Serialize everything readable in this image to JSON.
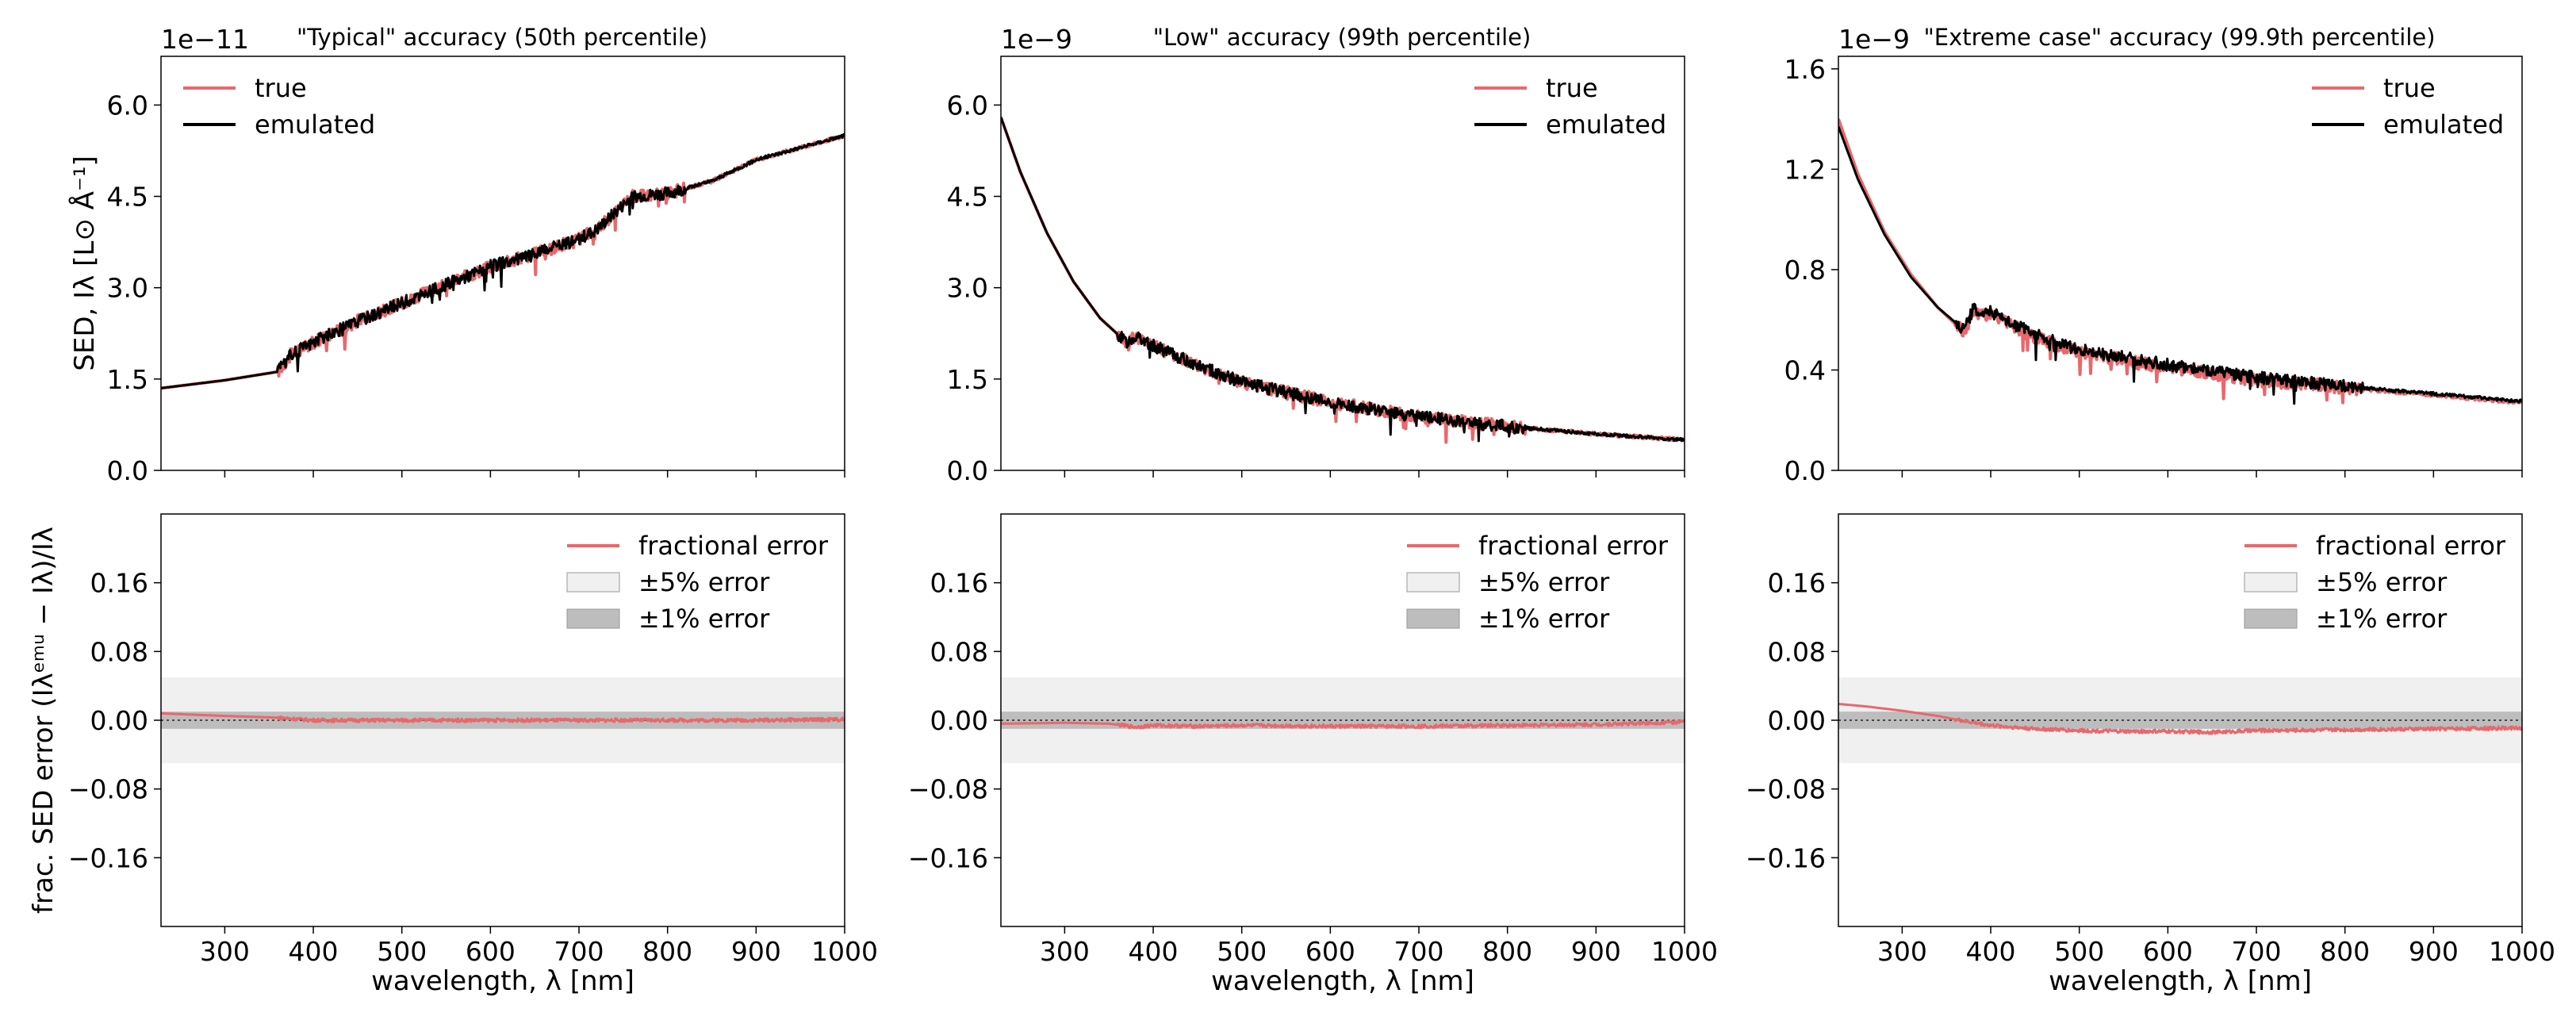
{
  "chart_data": [
    {
      "type": "line",
      "panel": "top-left",
      "title": "\"Typical\" accuracy (50th percentile)",
      "offset_text": "1e−11",
      "xlabel": "",
      "ylabel": "SED, Iλ [L⊙ Å⁻¹]",
      "xlim": [
        228,
        1000
      ],
      "ylim": [
        0.0,
        6.8
      ],
      "yticks": [
        0.0,
        1.5,
        3.0,
        4.5,
        6.0
      ],
      "ytick_labels": [
        "0.0",
        "1.5",
        "3.0",
        "4.5",
        "6.0"
      ],
      "xticks": [
        300,
        400,
        500,
        600,
        700,
        800,
        900,
        1000
      ],
      "legend": "top-left",
      "series": [
        {
          "name": "true",
          "color": "#e8686c",
          "x": [
            228,
            300,
            360,
            375,
            400,
            450,
            500,
            550,
            600,
            650,
            700,
            720,
            760,
            800,
            850,
            900,
            950,
            1000
          ],
          "y": [
            1.35,
            1.48,
            1.62,
            1.9,
            2.1,
            2.45,
            2.75,
            3.05,
            3.35,
            3.55,
            3.8,
            3.95,
            4.5,
            4.55,
            4.75,
            5.1,
            5.3,
            5.5
          ]
        },
        {
          "name": "emulated",
          "color": "#000000",
          "x": [
            228,
            300,
            360,
            375,
            400,
            450,
            500,
            550,
            600,
            650,
            700,
            720,
            760,
            800,
            850,
            900,
            950,
            1000
          ],
          "y": [
            1.35,
            1.48,
            1.62,
            1.9,
            2.1,
            2.45,
            2.75,
            3.05,
            3.35,
            3.55,
            3.8,
            3.95,
            4.5,
            4.55,
            4.75,
            5.1,
            5.3,
            5.5
          ]
        }
      ]
    },
    {
      "type": "line",
      "panel": "top-middle",
      "title": "\"Low\" accuracy (99th percentile)",
      "offset_text": "1e−9",
      "xlabel": "",
      "ylabel": "",
      "xlim": [
        228,
        1000
      ],
      "ylim": [
        0.0,
        6.8
      ],
      "yticks": [
        0.0,
        1.5,
        3.0,
        4.5,
        6.0
      ],
      "ytick_labels": [
        "0.0",
        "1.5",
        "3.0",
        "4.5",
        "6.0"
      ],
      "xticks": [
        300,
        400,
        500,
        600,
        700,
        800,
        900,
        1000
      ],
      "legend": "top-right",
      "series": [
        {
          "name": "true",
          "color": "#e8686c",
          "x": [
            228,
            250,
            280,
            310,
            340,
            370,
            380,
            400,
            450,
            500,
            550,
            600,
            700,
            800,
            900,
            1000
          ],
          "y": [
            5.8,
            4.9,
            3.9,
            3.1,
            2.5,
            2.1,
            2.2,
            2.05,
            1.72,
            1.45,
            1.28,
            1.12,
            0.88,
            0.72,
            0.6,
            0.5
          ]
        },
        {
          "name": "emulated",
          "color": "#000000",
          "x": [
            228,
            250,
            280,
            310,
            340,
            370,
            380,
            400,
            450,
            500,
            550,
            600,
            700,
            800,
            900,
            1000
          ],
          "y": [
            5.8,
            4.9,
            3.9,
            3.1,
            2.5,
            2.1,
            2.2,
            2.05,
            1.72,
            1.45,
            1.28,
            1.12,
            0.88,
            0.72,
            0.6,
            0.5
          ]
        }
      ]
    },
    {
      "type": "line",
      "panel": "top-right",
      "title": "\"Extreme case\" accuracy (99.9th percentile)",
      "offset_text": "1e−9",
      "xlabel": "",
      "ylabel": "",
      "xlim": [
        228,
        1000
      ],
      "ylim": [
        0.0,
        1.65
      ],
      "yticks": [
        0.0,
        0.4,
        0.8,
        1.2,
        1.6
      ],
      "ytick_labels": [
        "0.0",
        "0.4",
        "0.8",
        "1.2",
        "1.6"
      ],
      "xticks": [
        300,
        400,
        500,
        600,
        700,
        800,
        900,
        1000
      ],
      "legend": "top-right",
      "series": [
        {
          "name": "true",
          "color": "#e8686c",
          "x": [
            228,
            250,
            280,
            310,
            340,
            370,
            380,
            400,
            450,
            500,
            550,
            600,
            700,
            800,
            900,
            1000
          ],
          "y": [
            1.4,
            1.18,
            0.95,
            0.78,
            0.65,
            0.55,
            0.63,
            0.62,
            0.53,
            0.47,
            0.44,
            0.41,
            0.36,
            0.33,
            0.3,
            0.27
          ]
        },
        {
          "name": "emulated",
          "color": "#000000",
          "x": [
            228,
            250,
            280,
            310,
            340,
            370,
            380,
            400,
            450,
            500,
            550,
            600,
            700,
            800,
            900,
            1000
          ],
          "y": [
            1.37,
            1.16,
            0.94,
            0.77,
            0.65,
            0.56,
            0.64,
            0.63,
            0.54,
            0.48,
            0.45,
            0.42,
            0.37,
            0.335,
            0.305,
            0.275
          ]
        }
      ]
    },
    {
      "type": "line",
      "panel": "bottom-left",
      "title": "",
      "xlabel": "wavelength, λ [nm]",
      "ylabel": "frac. SED error (Iλᵉᵐᵘ − Iλ)/Iλ",
      "xlim": [
        228,
        1000
      ],
      "ylim": [
        -0.24,
        0.24
      ],
      "yticks": [
        -0.16,
        -0.08,
        0.0,
        0.08,
        0.16
      ],
      "ytick_labels": [
        "−0.16",
        "−0.08",
        "0.00",
        "0.08",
        "0.16"
      ],
      "xticks": [
        300,
        400,
        500,
        600,
        700,
        800,
        900,
        1000
      ],
      "xtick_labels": [
        "300",
        "400",
        "500",
        "600",
        "700",
        "800",
        "900",
        "1000"
      ],
      "legend": "top-right",
      "bands": [
        {
          "name": "±5% error",
          "range": [
            -0.05,
            0.05
          ],
          "color": "#f0f0f0"
        },
        {
          "name": "±1% error",
          "range": [
            -0.01,
            0.01
          ],
          "color": "#bdbdbd"
        }
      ],
      "series": [
        {
          "name": "fractional error",
          "color": "#e8686c",
          "x": [
            228,
            300,
            360,
            400,
            500,
            600,
            700,
            800,
            900,
            1000
          ],
          "y": [
            0.008,
            0.005,
            0.003,
            0.0,
            0.0,
            0.0,
            0.0,
            0.0,
            0.0,
            0.001
          ]
        }
      ]
    },
    {
      "type": "line",
      "panel": "bottom-middle",
      "title": "",
      "xlabel": "wavelength, λ [nm]",
      "ylabel": "",
      "xlim": [
        228,
        1000
      ],
      "ylim": [
        -0.24,
        0.24
      ],
      "yticks": [
        -0.16,
        -0.08,
        0.0,
        0.08,
        0.16
      ],
      "ytick_labels": [
        "−0.16",
        "−0.08",
        "0.00",
        "0.08",
        "0.16"
      ],
      "xticks": [
        300,
        400,
        500,
        600,
        700,
        800,
        900,
        1000
      ],
      "xtick_labels": [
        "300",
        "400",
        "500",
        "600",
        "700",
        "800",
        "900",
        "1000"
      ],
      "legend": "top-right",
      "bands": [
        {
          "name": "±5% error",
          "range": [
            -0.05,
            0.05
          ],
          "color": "#f0f0f0"
        },
        {
          "name": "±1% error",
          "range": [
            -0.01,
            0.01
          ],
          "color": "#bdbdbd"
        }
      ],
      "series": [
        {
          "name": "fractional error",
          "color": "#e8686c",
          "x": [
            228,
            300,
            350,
            380,
            400,
            450,
            500,
            600,
            700,
            800,
            900,
            1000
          ],
          "y": [
            -0.004,
            -0.003,
            -0.004,
            -0.008,
            -0.006,
            -0.007,
            -0.006,
            -0.007,
            -0.007,
            -0.006,
            -0.005,
            -0.002
          ]
        }
      ]
    },
    {
      "type": "line",
      "panel": "bottom-right",
      "title": "",
      "xlabel": "wavelength, λ [nm]",
      "ylabel": "",
      "xlim": [
        228,
        1000
      ],
      "ylim": [
        -0.24,
        0.24
      ],
      "yticks": [
        -0.16,
        -0.08,
        0.0,
        0.08,
        0.16
      ],
      "ytick_labels": [
        "−0.16",
        "−0.08",
        "0.00",
        "0.08",
        "0.16"
      ],
      "xticks": [
        300,
        400,
        500,
        600,
        700,
        800,
        900,
        1000
      ],
      "xtick_labels": [
        "300",
        "400",
        "500",
        "600",
        "700",
        "800",
        "900",
        "1000"
      ],
      "legend": "top-right",
      "bands": [
        {
          "name": "±5% error",
          "range": [
            -0.05,
            0.05
          ],
          "color": "#f0f0f0"
        },
        {
          "name": "±1% error",
          "range": [
            -0.01,
            0.01
          ],
          "color": "#bdbdbd"
        }
      ],
      "series": [
        {
          "name": "fractional error",
          "color": "#e8686c",
          "x": [
            228,
            260,
            300,
            340,
            370,
            400,
            450,
            500,
            550,
            600,
            650,
            700,
            800,
            900,
            1000
          ],
          "y": [
            0.019,
            0.016,
            0.011,
            0.005,
            -0.001,
            -0.006,
            -0.01,
            -0.012,
            -0.013,
            -0.013,
            -0.014,
            -0.012,
            -0.011,
            -0.01,
            -0.009
          ]
        }
      ]
    }
  ]
}
